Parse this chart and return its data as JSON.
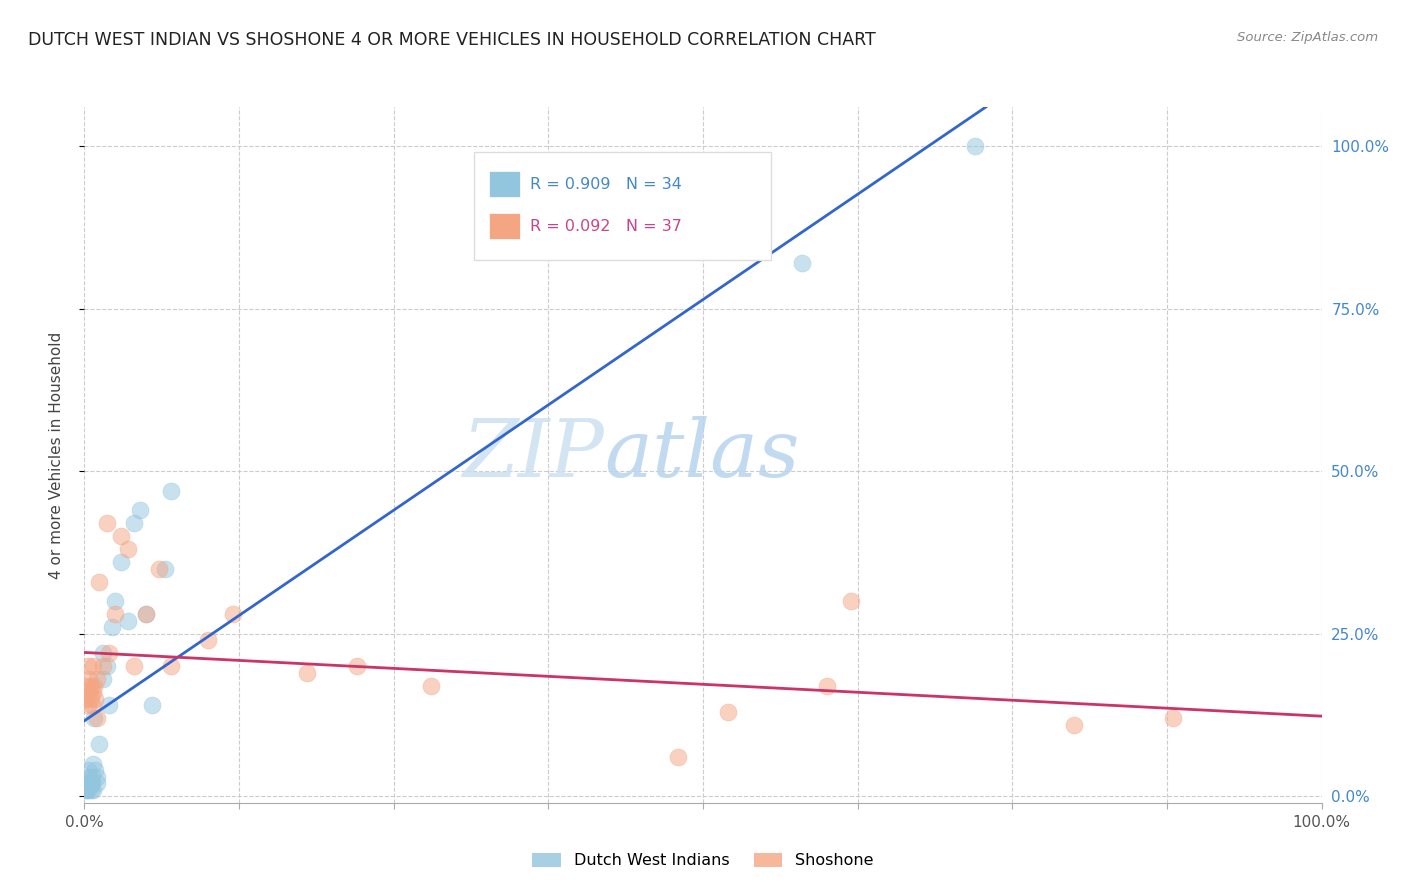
{
  "title": "DUTCH WEST INDIAN VS SHOSHONE 4 OR MORE VEHICLES IN HOUSEHOLD CORRELATION CHART",
  "source": "Source: ZipAtlas.com",
  "ylabel": "4 or more Vehicles in Household",
  "legend_label_1": "Dutch West Indians",
  "legend_label_2": "Shoshone",
  "r1": 0.909,
  "n1": 34,
  "r2": 0.092,
  "n2": 37,
  "color_blue": "#92c5de",
  "color_pink": "#f4a582",
  "color_blue_dark": "#4393c3",
  "color_pink_dark": "#d6604d",
  "trendline1_color": "#3366cc",
  "trendline2_color": "#cc3366",
  "watermark_zip": "ZIP",
  "watermark_atlas": "atlas",
  "dutch_x": [
    0.001,
    0.002,
    0.002,
    0.003,
    0.003,
    0.004,
    0.004,
    0.005,
    0.005,
    0.006,
    0.006,
    0.007,
    0.007,
    0.008,
    0.009,
    0.01,
    0.01,
    0.012,
    0.015,
    0.015,
    0.018,
    0.02,
    0.022,
    0.025,
    0.03,
    0.035,
    0.04,
    0.045,
    0.05,
    0.055,
    0.065,
    0.07,
    0.58,
    0.72
  ],
  "dutch_y": [
    0.01,
    0.01,
    0.02,
    0.01,
    0.04,
    0.02,
    0.03,
    0.01,
    0.02,
    0.03,
    0.02,
    0.01,
    0.05,
    0.12,
    0.04,
    0.02,
    0.03,
    0.08,
    0.18,
    0.22,
    0.2,
    0.14,
    0.26,
    0.3,
    0.36,
    0.27,
    0.42,
    0.44,
    0.28,
    0.14,
    0.35,
    0.47,
    0.82,
    1.0
  ],
  "shoshone_x": [
    0.001,
    0.002,
    0.003,
    0.003,
    0.004,
    0.004,
    0.005,
    0.005,
    0.006,
    0.007,
    0.007,
    0.008,
    0.009,
    0.01,
    0.01,
    0.012,
    0.015,
    0.018,
    0.02,
    0.025,
    0.03,
    0.035,
    0.04,
    0.05,
    0.06,
    0.07,
    0.1,
    0.12,
    0.18,
    0.22,
    0.28,
    0.48,
    0.52,
    0.6,
    0.62,
    0.8,
    0.88
  ],
  "shoshone_y": [
    0.15,
    0.17,
    0.14,
    0.2,
    0.18,
    0.16,
    0.15,
    0.17,
    0.14,
    0.16,
    0.2,
    0.17,
    0.15,
    0.12,
    0.18,
    0.33,
    0.2,
    0.42,
    0.22,
    0.28,
    0.4,
    0.38,
    0.2,
    0.28,
    0.35,
    0.2,
    0.24,
    0.28,
    0.19,
    0.2,
    0.17,
    0.06,
    0.13,
    0.17,
    0.3,
    0.11,
    0.12
  ],
  "xlim": [
    0.0,
    1.0
  ],
  "ylim": [
    0.0,
    1.06
  ]
}
